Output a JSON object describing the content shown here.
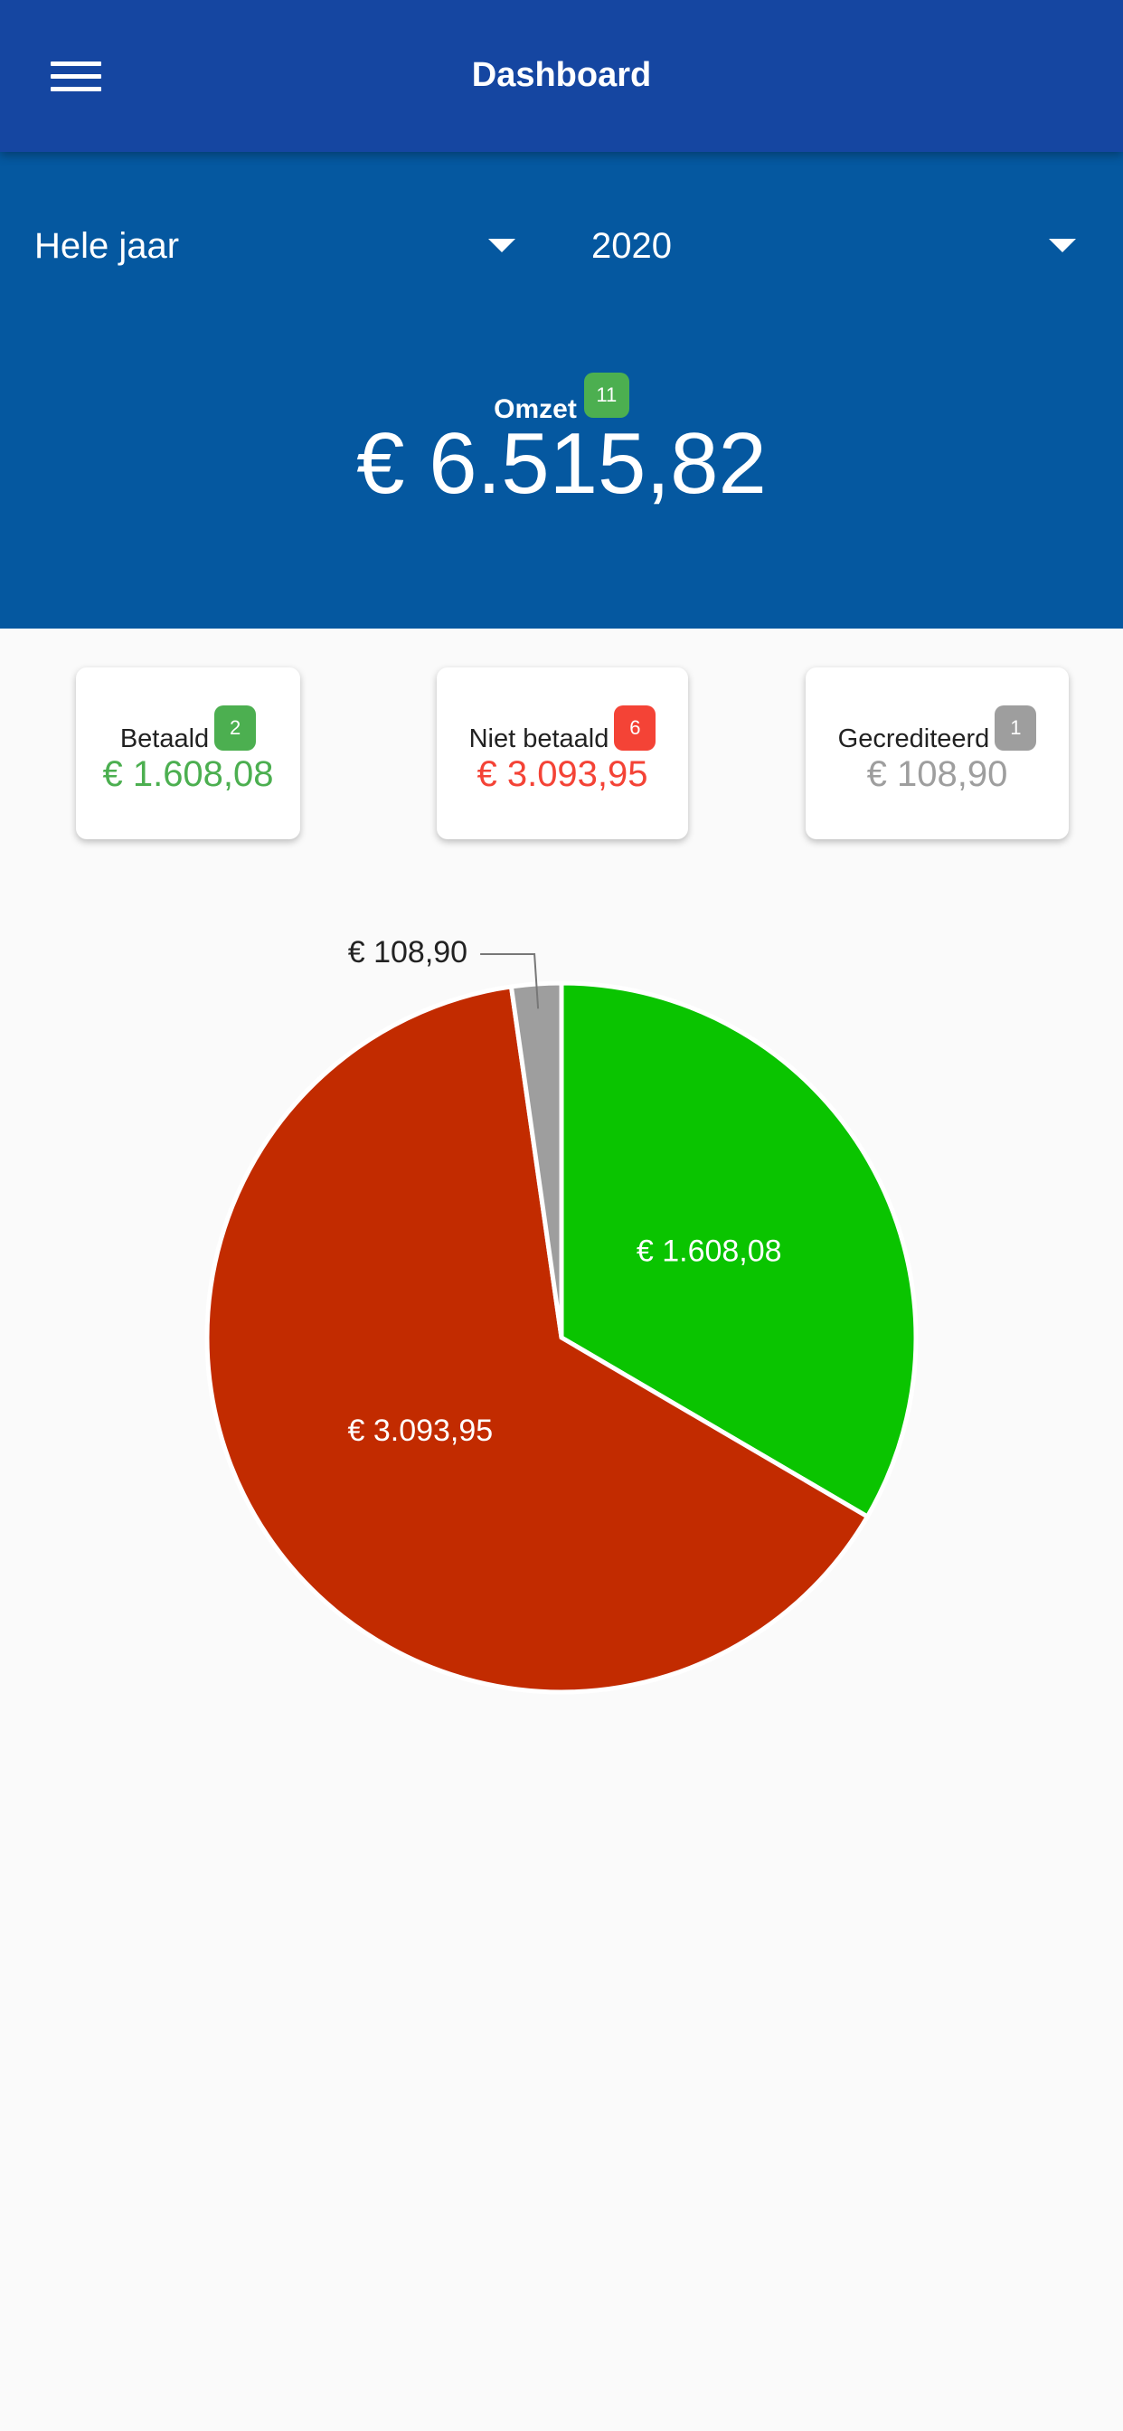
{
  "header": {
    "title": "Dashboard"
  },
  "filters": {
    "period": "Hele jaar",
    "year": "2020"
  },
  "summary": {
    "label": "Omzet",
    "count": "11",
    "amount": "€ 6.515,82"
  },
  "cards": [
    {
      "title": "Betaald",
      "count": "2",
      "amount": "€ 1.608,08",
      "color": "#4caf50"
    },
    {
      "title": "Niet betaald",
      "count": "6",
      "amount": "€ 3.093,95",
      "color": "#f44336"
    },
    {
      "title": "Gecrediteerd",
      "count": "1",
      "amount": "€ 108,90",
      "color": "#9e9e9e"
    }
  ],
  "chart_data": {
    "type": "pie",
    "values": [
      1608.08,
      3093.95,
      108.9
    ],
    "value_labels": [
      "€ 1.608,08",
      "€ 3.093,95",
      "€ 108,90"
    ],
    "colors": [
      "#0ac400",
      "#c22b00",
      "#9e9e9e"
    ]
  }
}
